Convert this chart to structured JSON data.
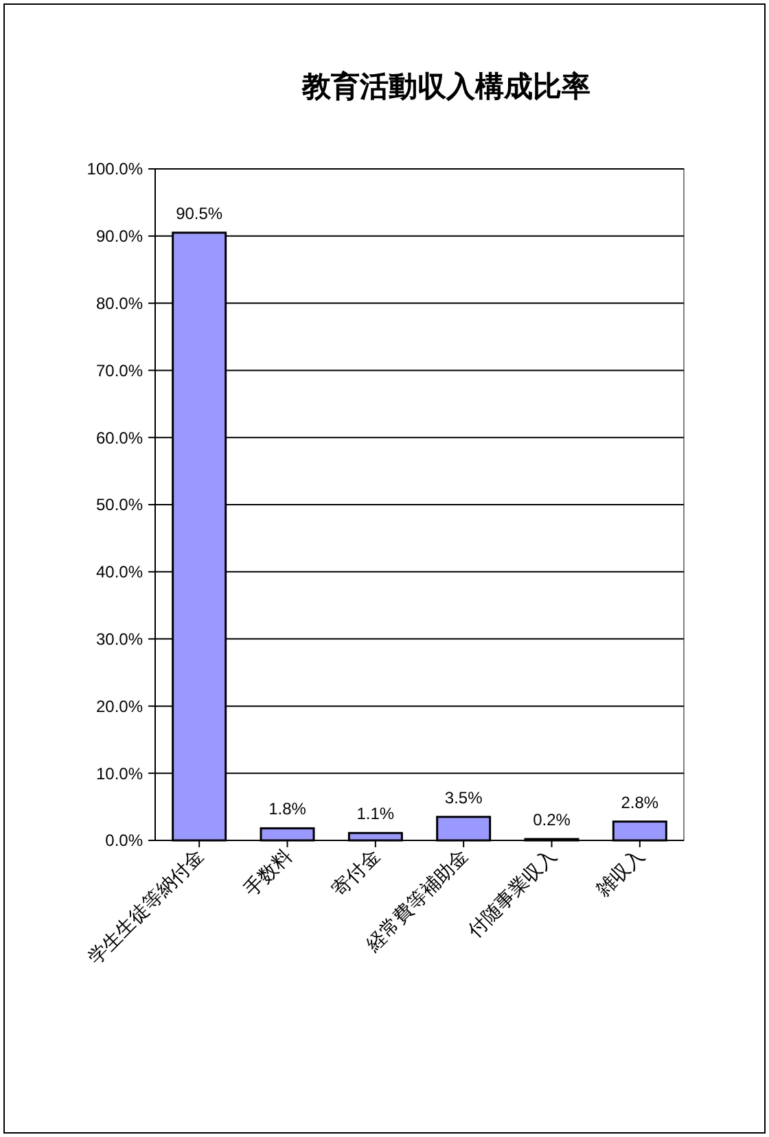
{
  "chart_data": {
    "type": "bar",
    "title": "教育活動収入構成比率",
    "categories": [
      "学生生徒等納付金",
      "手数料",
      "寄付金",
      "経常費等補助金",
      "付随事業収入",
      "雑収入"
    ],
    "values": [
      90.5,
      1.8,
      1.1,
      3.5,
      0.2,
      2.8
    ],
    "value_labels": [
      "90.5%",
      "1.8%",
      "1.1%",
      "3.5%",
      "0.2%",
      "2.8%"
    ],
    "color": "#9999ff",
    "ylim": [
      0,
      100
    ],
    "yticks": [
      {
        "value": 0,
        "label": "0.0%"
      },
      {
        "value": 10,
        "label": "10.0%"
      },
      {
        "value": 20,
        "label": "20.0%"
      },
      {
        "value": 30,
        "label": "30.0%"
      },
      {
        "value": 40,
        "label": "40.0%"
      },
      {
        "value": 50,
        "label": "50.0%"
      },
      {
        "value": 60,
        "label": "60.0%"
      },
      {
        "value": 70,
        "label": "70.0%"
      },
      {
        "value": 80,
        "label": "80.0%"
      },
      {
        "value": 90,
        "label": "90.0%"
      },
      {
        "value": 100,
        "label": "100.0%"
      }
    ],
    "grid": "y"
  }
}
